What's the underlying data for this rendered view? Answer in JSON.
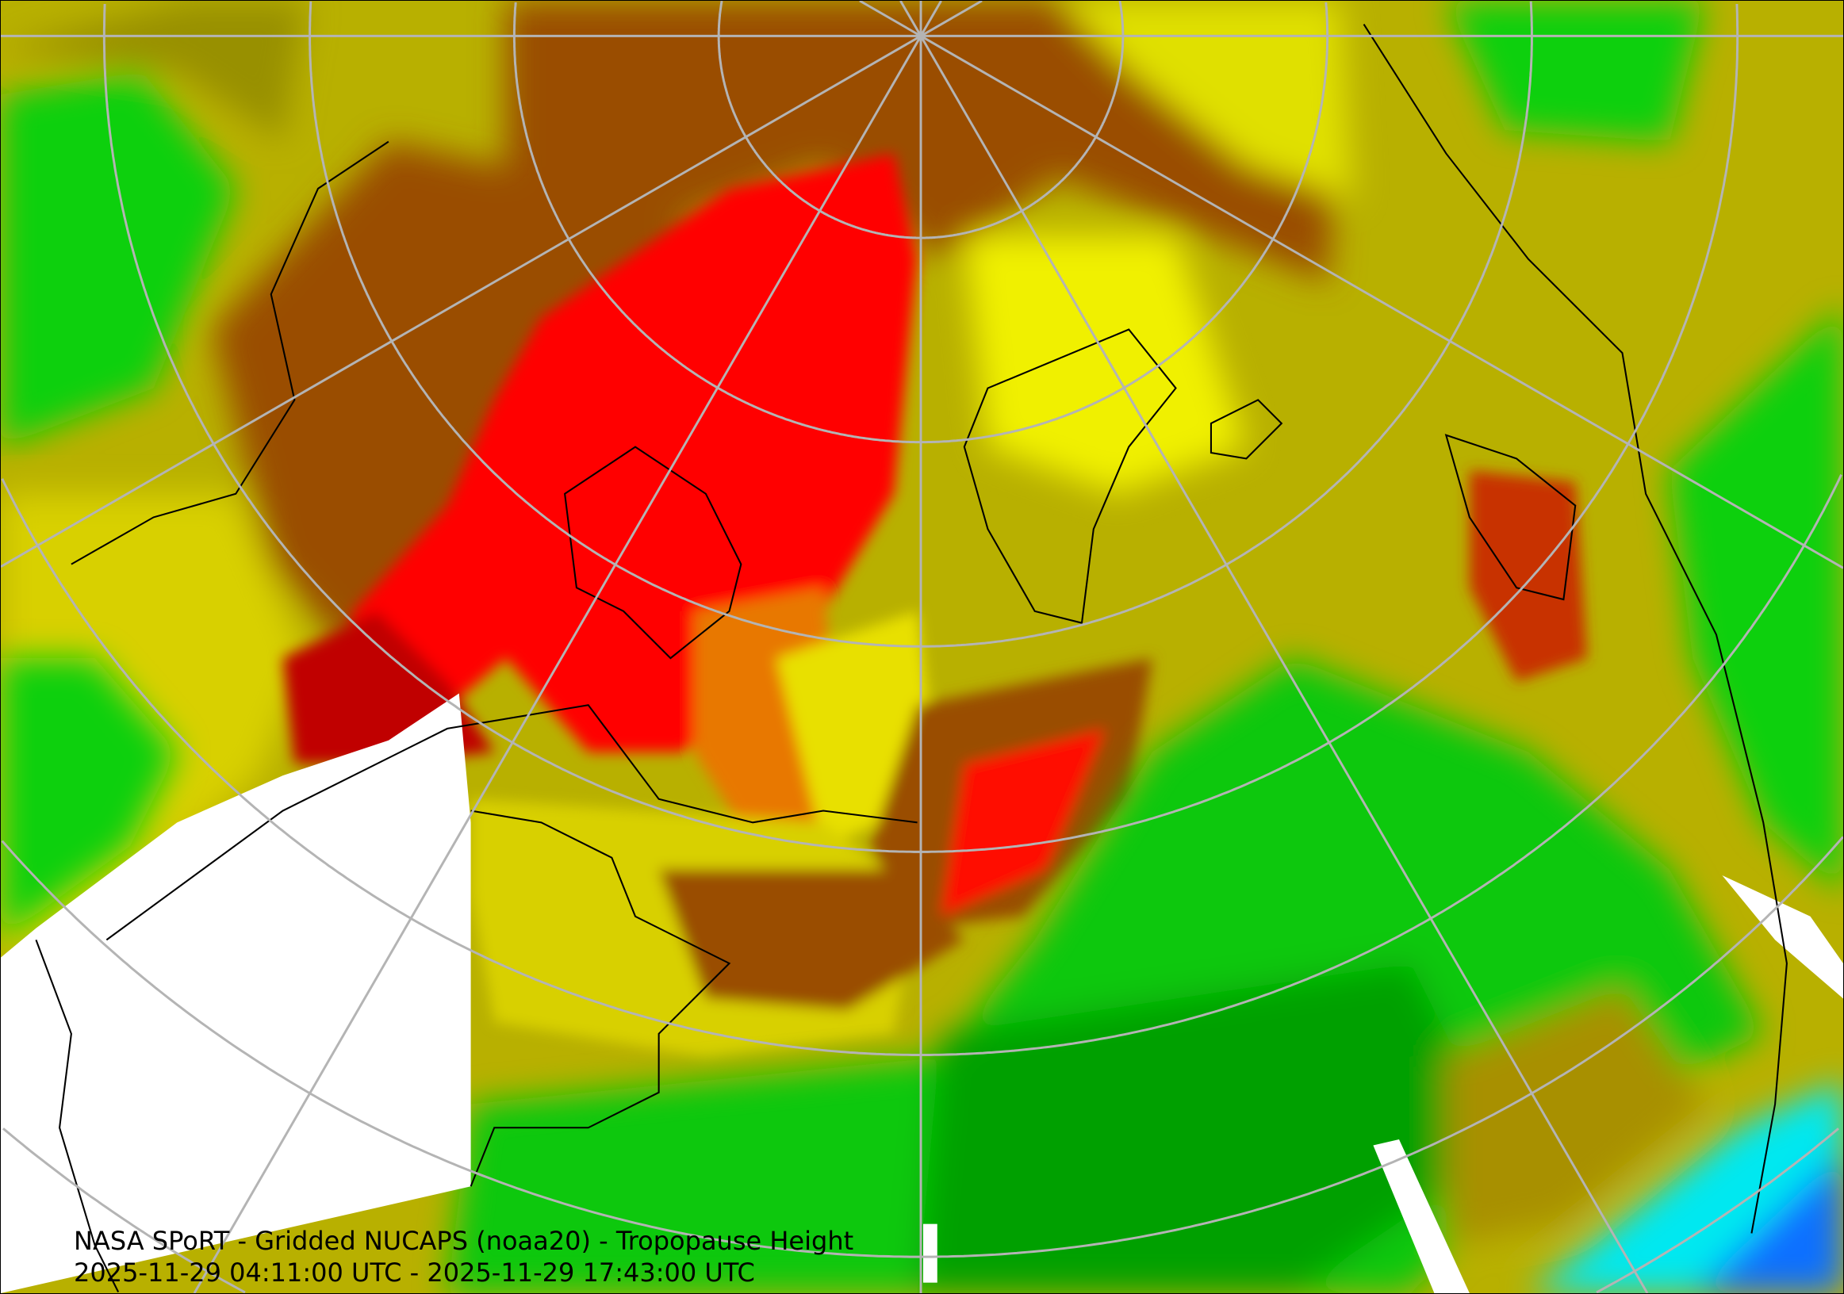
{
  "map": {
    "title": "NASA SPoRT - Gridded NUCAPS (noaa20) - Tropopause Height",
    "time_range": "2025-11-29 04:11:00 UTC - 2025-11-29 17:43:00 UTC",
    "projection": "north-polar-stereographic",
    "colors": {
      "red": "#ff0000",
      "dark_red": "#c00000",
      "orange": "#e87800",
      "brown": "#9a4e00",
      "yellow": "#f0f000",
      "olive": "#b8b000",
      "dark_olive": "#989000",
      "green": "#00e000",
      "dark_green": "#00a000",
      "cyan": "#00ffff",
      "blue": "#0070ff",
      "no_data": "#ffffff",
      "graticule": "#b0b0b0",
      "borders": "#000000"
    }
  }
}
